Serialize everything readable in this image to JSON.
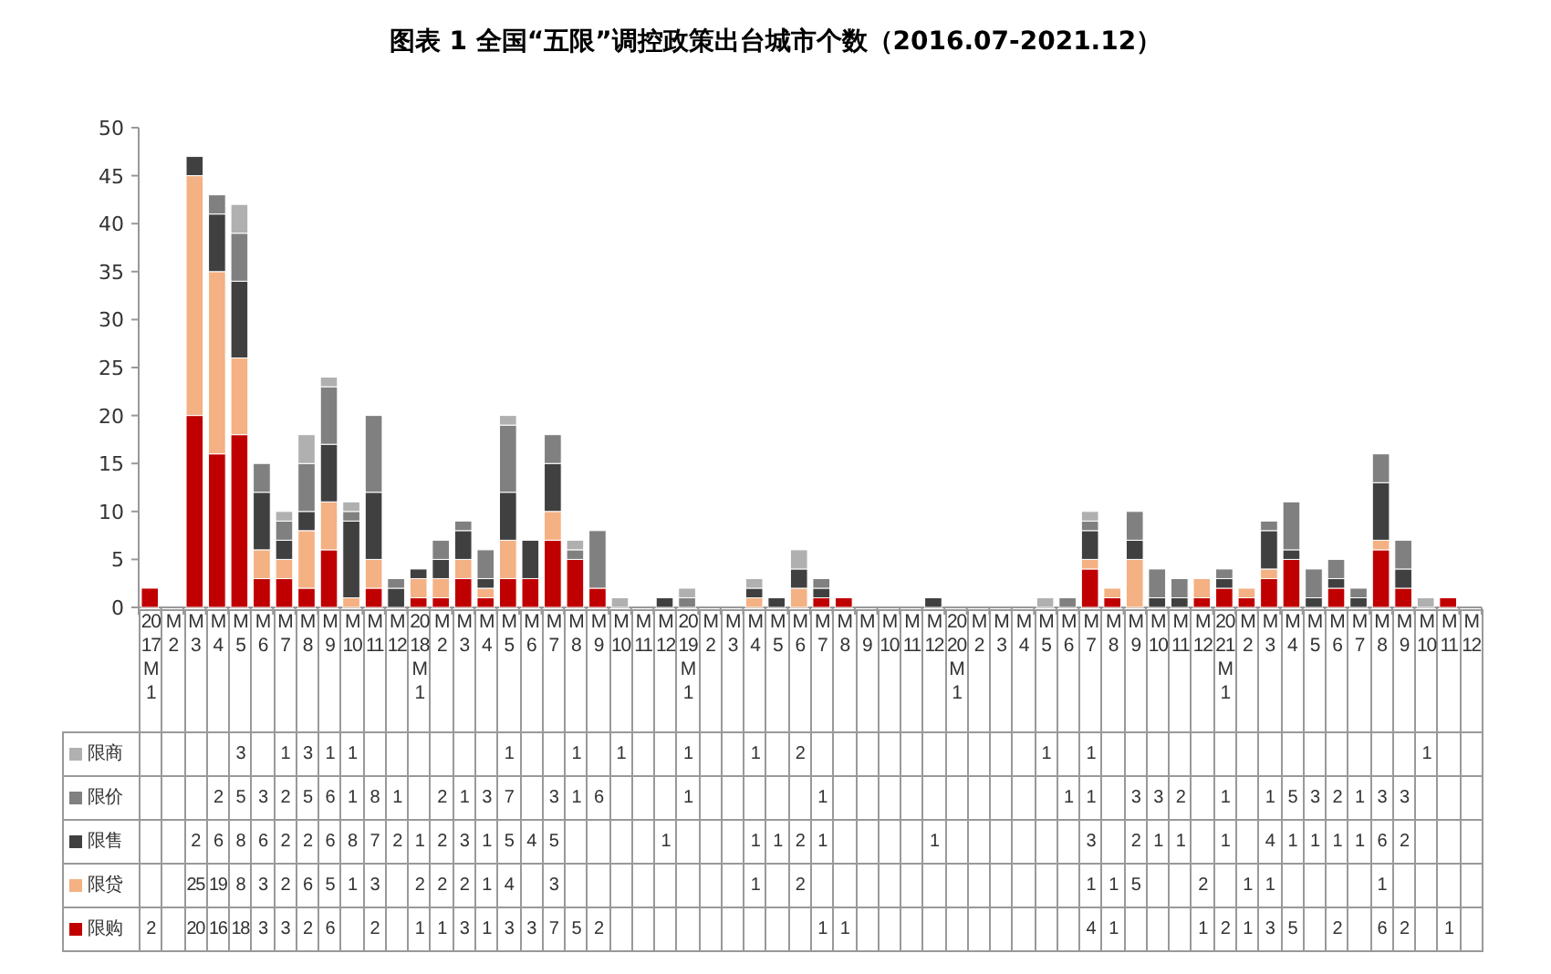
{
  "chart_data": {
    "type": "bar",
    "stacked": true,
    "title": "图表 1  全国“五限”调控政策出台城市个数（2016.07-2021.12）",
    "categories": [
      "2017M1",
      "M2",
      "M3",
      "M4",
      "M5",
      "M6",
      "M7",
      "M8",
      "M9",
      "M10",
      "M11",
      "M12",
      "2018M1",
      "M2",
      "M3",
      "M4",
      "M5",
      "M6",
      "M7",
      "M8",
      "M9",
      "M10",
      "M11",
      "M12",
      "2019M1",
      "M2",
      "M3",
      "M4",
      "M5",
      "M6",
      "M7",
      "M8",
      "M9",
      "M10",
      "M11",
      "M12",
      "2020M1",
      "M2",
      "M3",
      "M4",
      "M5",
      "M6",
      "M7",
      "M8",
      "M9",
      "M10",
      "M11",
      "M12",
      "2021M1",
      "M2",
      "M3",
      "M4",
      "M5",
      "M6",
      "M7",
      "M8",
      "M9",
      "M10",
      "M11",
      "M12"
    ],
    "ylim": [
      0,
      50
    ],
    "yticks": [
      0,
      5,
      10,
      15,
      20,
      25,
      30,
      35,
      40,
      45,
      50
    ],
    "grid": false,
    "legend": "bottom",
    "data_labels": true,
    "series": [
      {
        "name": "限购",
        "color": "#c00000",
        "values": [
          2,
          null,
          20,
          16,
          18,
          3,
          3,
          2,
          6,
          null,
          2,
          null,
          1,
          1,
          3,
          1,
          3,
          3,
          7,
          5,
          2,
          null,
          null,
          null,
          null,
          null,
          null,
          null,
          null,
          null,
          1,
          1,
          null,
          null,
          null,
          null,
          null,
          null,
          null,
          null,
          null,
          null,
          4,
          1,
          null,
          null,
          null,
          1,
          2,
          1,
          3,
          5,
          null,
          2,
          null,
          6,
          2,
          null,
          1,
          null
        ]
      },
      {
        "name": "限贷",
        "color": "#f4b183",
        "values": [
          null,
          null,
          25,
          19,
          8,
          3,
          2,
          6,
          5,
          1,
          3,
          null,
          2,
          2,
          2,
          1,
          4,
          null,
          3,
          null,
          null,
          null,
          null,
          null,
          null,
          null,
          null,
          1,
          null,
          2,
          null,
          null,
          null,
          null,
          null,
          null,
          null,
          null,
          null,
          null,
          null,
          null,
          1,
          1,
          5,
          null,
          null,
          2,
          null,
          1,
          1,
          null,
          null,
          null,
          null,
          1,
          null,
          null,
          null,
          null
        ]
      },
      {
        "name": "限售",
        "color": "#404040",
        "values": [
          null,
          null,
          2,
          6,
          8,
          6,
          2,
          2,
          6,
          8,
          7,
          2,
          1,
          2,
          3,
          1,
          5,
          4,
          5,
          null,
          null,
          null,
          null,
          1,
          null,
          null,
          null,
          1,
          1,
          2,
          1,
          null,
          null,
          null,
          null,
          1,
          null,
          null,
          null,
          null,
          null,
          null,
          3,
          null,
          2,
          1,
          1,
          null,
          1,
          null,
          4,
          1,
          1,
          1,
          1,
          6,
          2,
          null,
          null,
          null
        ]
      },
      {
        "name": "限价",
        "color": "#808080",
        "values": [
          null,
          null,
          null,
          2,
          5,
          3,
          2,
          5,
          6,
          1,
          8,
          1,
          null,
          2,
          1,
          3,
          7,
          null,
          3,
          1,
          6,
          null,
          null,
          null,
          1,
          null,
          null,
          null,
          null,
          null,
          1,
          null,
          null,
          null,
          null,
          null,
          null,
          null,
          null,
          null,
          null,
          1,
          1,
          null,
          3,
          3,
          2,
          null,
          1,
          null,
          1,
          5,
          3,
          2,
          1,
          3,
          3,
          null,
          null,
          null
        ]
      },
      {
        "name": "限商",
        "color": "#b0b0b0",
        "values": [
          null,
          null,
          null,
          null,
          3,
          null,
          1,
          3,
          1,
          1,
          null,
          null,
          null,
          null,
          null,
          null,
          1,
          null,
          null,
          1,
          null,
          1,
          null,
          null,
          1,
          null,
          null,
          1,
          null,
          2,
          null,
          null,
          null,
          null,
          null,
          null,
          null,
          null,
          null,
          null,
          1,
          null,
          1,
          null,
          null,
          null,
          null,
          null,
          null,
          null,
          null,
          null,
          null,
          null,
          null,
          null,
          null,
          1,
          null,
          null
        ]
      }
    ]
  }
}
